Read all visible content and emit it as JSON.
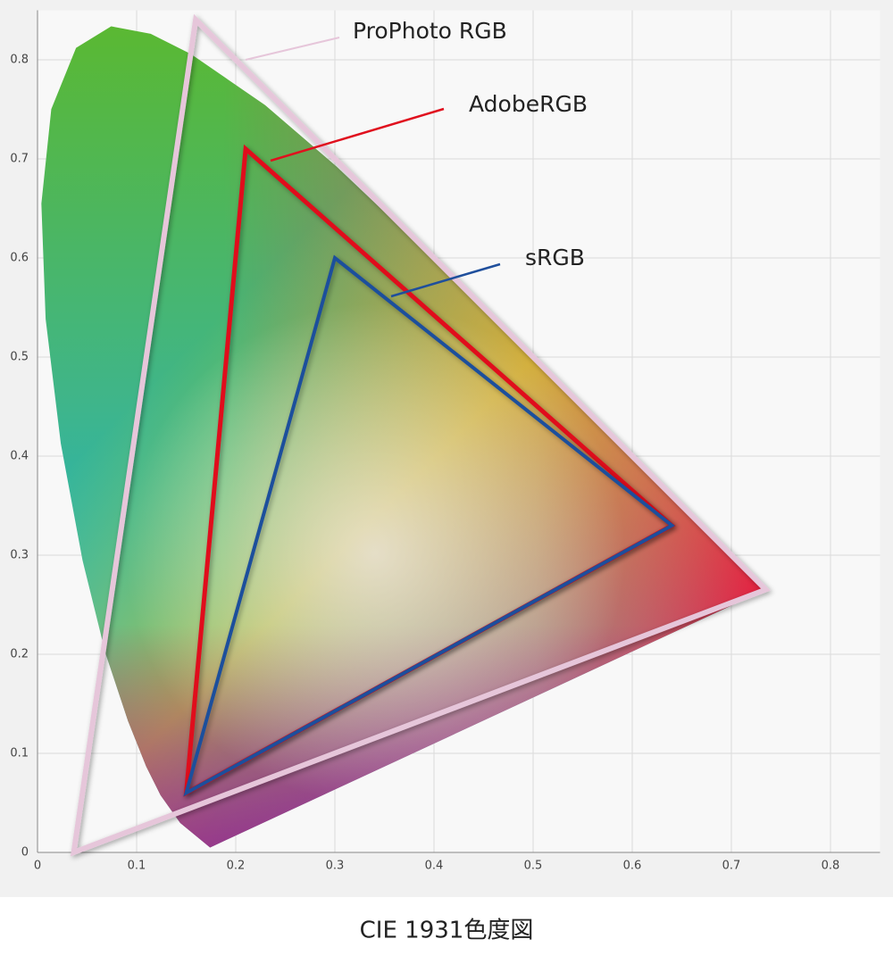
{
  "chart_data": {
    "type": "polygon",
    "title": "CIE 1931色度図",
    "xlim": [
      0,
      0.85
    ],
    "ylim": [
      0,
      0.85
    ],
    "xticks": [
      0,
      0.1,
      0.2,
      0.3,
      0.4,
      0.5,
      0.6,
      0.7,
      0.8
    ],
    "yticks": [
      0,
      0.1,
      0.2,
      0.3,
      0.4,
      0.5,
      0.6,
      0.7,
      0.8
    ],
    "grid": true,
    "locus": {
      "x": [
        0.1741,
        0.144,
        0.1241,
        0.1096,
        0.0913,
        0.0687,
        0.0454,
        0.0235,
        0.0082,
        0.0039,
        0.0139,
        0.0389,
        0.0743,
        0.1142,
        0.1547,
        0.2296,
        0.3016,
        0.3731,
        0.4441,
        0.5125,
        0.5752,
        0.627,
        0.6915,
        0.719,
        0.7347
      ],
      "y": [
        0.005,
        0.0297,
        0.0578,
        0.0868,
        0.1327,
        0.2007,
        0.295,
        0.4127,
        0.5384,
        0.6548,
        0.7502,
        0.812,
        0.8338,
        0.8262,
        0.8059,
        0.7543,
        0.6923,
        0.6245,
        0.5547,
        0.4866,
        0.4242,
        0.3725,
        0.3083,
        0.2809,
        0.2653
      ]
    },
    "series": [
      {
        "name": "ProPhoto RGB",
        "color": "#e6c6da",
        "x": [
          0.7347,
          0.1596,
          0.0366
        ],
        "y": [
          0.2653,
          0.8404,
          0.0001
        ]
      },
      {
        "name": "AdobeRGB",
        "color": "#e0101e",
        "x": [
          0.64,
          0.21,
          0.15
        ],
        "y": [
          0.33,
          0.71,
          0.06
        ]
      },
      {
        "name": "sRGB",
        "color": "#1f4f9c",
        "x": [
          0.64,
          0.3,
          0.15
        ],
        "y": [
          0.33,
          0.6,
          0.06
        ]
      }
    ]
  }
}
